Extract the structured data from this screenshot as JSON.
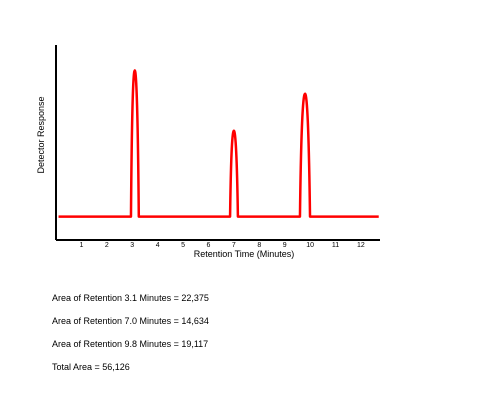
{
  "chart_data": {
    "type": "line",
    "xlabel": "Retention Time (Minutes)",
    "ylabel": "Detector Response",
    "xlim": [
      0,
      12.75
    ],
    "ylim": [
      0,
      1
    ],
    "x_ticks": [
      1,
      2,
      3,
      4,
      5,
      6,
      7,
      8,
      9,
      10,
      11,
      12
    ],
    "baseline": 0.12,
    "grid": false,
    "legend": "none",
    "line_color": "#ff0000",
    "peaks": [
      {
        "center": 3.1,
        "start": 2.95,
        "end": 3.3,
        "height": 0.87
      },
      {
        "center": 7.0,
        "start": 6.85,
        "end": 7.2,
        "height": 0.56
      },
      {
        "center": 9.8,
        "start": 9.6,
        "end": 10.05,
        "height": 0.75
      }
    ]
  },
  "results": [
    "Area of Retention 3.1 Minutes = 22,375",
    "Area of Retention 7.0 Minutes = 14,634",
    "Area of Retention 9.8 Minutes = 19,117",
    "Total Area = 56,126"
  ]
}
